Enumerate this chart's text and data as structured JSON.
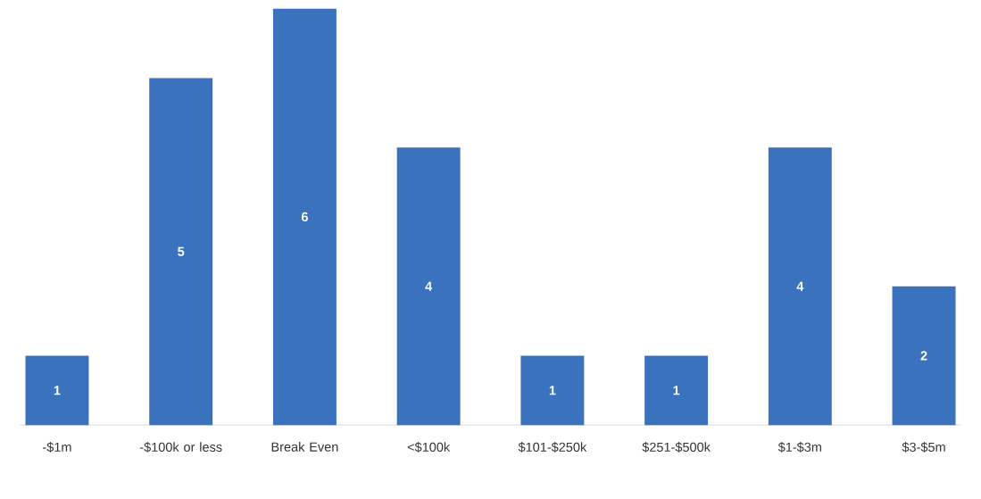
{
  "chart_data": {
    "type": "bar",
    "categories": [
      "-$1m",
      "-$100k or less",
      "Break Even",
      "<$100k",
      "$101-$250k",
      "$251-$500k",
      "$1-$3m",
      "$3-$5m"
    ],
    "values": [
      1,
      5,
      6,
      4,
      1,
      1,
      4,
      2
    ],
    "color": "#3a72bd",
    "data_labels": true
  }
}
